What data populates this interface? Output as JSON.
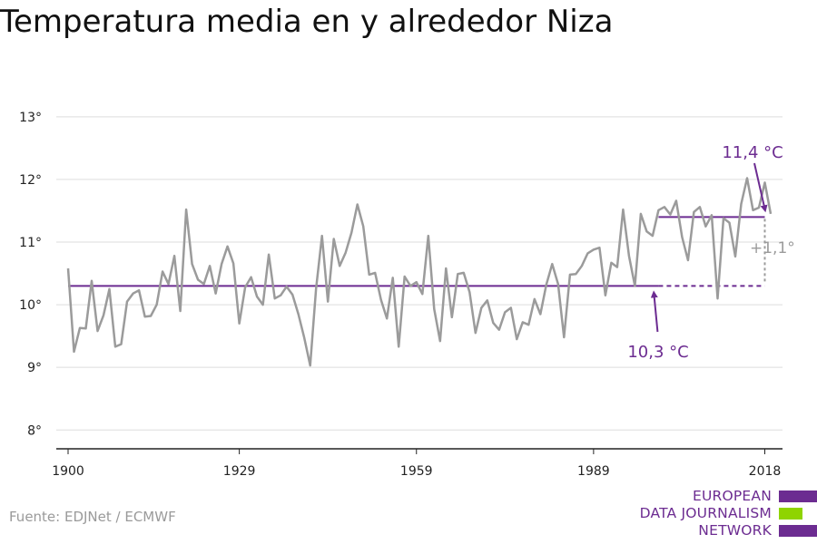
{
  "title": "Temperatura media en y alrededor Niza",
  "source": "Fuente: EDJNet / ECMWF",
  "logo": {
    "lines": [
      "EUROPEAN",
      "DATA JOURNALISM",
      "NETWORK"
    ],
    "colors": {
      "purple": "#6c2c91",
      "green": "#8fd400"
    }
  },
  "colors": {
    "series": "#9b9b9b",
    "baseline": "#6c2c91",
    "delta": "#9b9b9b",
    "grid": "#dddddd"
  },
  "chart_data": {
    "type": "line",
    "title": "Temperatura media en y alrededor Niza",
    "ylim": [
      7.7,
      13.2
    ],
    "xlim": [
      1898,
      2021
    ],
    "y_ticks": [
      8,
      9,
      10,
      11,
      12,
      13
    ],
    "y_tick_labels": [
      "8°",
      "9°",
      "10°",
      "11°",
      "12°",
      "13°"
    ],
    "x_ticks": [
      1900,
      1929,
      1959,
      1989,
      2018
    ],
    "x_tick_labels": [
      "1900",
      "1929",
      "1959",
      "1989",
      "2018"
    ],
    "grid": true,
    "series": [
      {
        "x": [
          1900,
          1901,
          1902,
          1903,
          1904,
          1905,
          1906,
          1907,
          1908,
          1909,
          1910,
          1911,
          1912,
          1913,
          1914,
          1915,
          1916,
          1917,
          1918,
          1919,
          1920,
          1921,
          1922,
          1923,
          1924,
          1925,
          1926,
          1927,
          1928,
          1929,
          1930,
          1931,
          1932,
          1933,
          1934,
          1935,
          1936,
          1937,
          1938,
          1939,
          1940,
          1941,
          1942,
          1943,
          1944,
          1945,
          1946,
          1947,
          1948,
          1949,
          1950,
          1951,
          1952,
          1953,
          1954,
          1955,
          1956,
          1957,
          1958,
          1959,
          1960,
          1961,
          1962,
          1963,
          1964,
          1965,
          1966,
          1967,
          1968,
          1969,
          1970,
          1971,
          1972,
          1973,
          1974,
          1975,
          1976,
          1977,
          1978,
          1979,
          1980,
          1981,
          1982,
          1983,
          1984,
          1985,
          1986,
          1987,
          1988,
          1989,
          1990,
          1991,
          1992,
          1993,
          1994,
          1995,
          1996,
          1997,
          1998,
          1999,
          2000,
          2001,
          2002,
          2003,
          2004,
          2005,
          2006,
          2007,
          2008,
          2009,
          2010,
          2011,
          2012,
          2013,
          2014,
          2015,
          2016,
          2017,
          2018,
          2019
        ],
        "values": [
          10.58,
          9.25,
          9.63,
          9.62,
          10.38,
          9.58,
          9.83,
          10.25,
          9.33,
          9.37,
          10.05,
          10.18,
          10.23,
          9.81,
          9.82,
          10.0,
          10.53,
          10.33,
          10.78,
          9.9,
          11.52,
          10.65,
          10.4,
          10.33,
          10.62,
          10.18,
          10.65,
          10.93,
          10.66,
          9.7,
          10.28,
          10.44,
          10.13,
          10.0,
          10.8,
          10.1,
          10.15,
          10.29,
          10.16,
          9.85,
          9.47,
          9.03,
          10.26,
          11.1,
          10.05,
          11.05,
          10.62,
          10.83,
          11.15,
          11.6,
          11.25,
          10.48,
          10.51,
          10.08,
          9.78,
          10.43,
          9.33,
          10.45,
          10.3,
          10.36,
          10.17,
          11.1,
          9.93,
          9.42,
          10.58,
          9.8,
          10.49,
          10.51,
          10.2,
          9.55,
          9.95,
          10.07,
          9.71,
          9.6,
          9.88,
          9.95,
          9.45,
          9.72,
          9.68,
          10.09,
          9.85,
          10.32,
          10.65,
          10.33,
          9.48,
          10.48,
          10.49,
          10.62,
          10.82,
          10.88,
          10.91,
          10.15,
          10.67,
          10.6,
          11.52,
          10.78,
          10.3,
          11.45,
          11.17,
          11.1,
          11.51,
          11.56,
          11.44,
          11.66,
          11.08,
          10.71,
          11.48,
          11.56,
          11.25,
          11.43,
          10.1,
          11.38,
          11.31,
          10.77,
          11.61,
          12.02,
          11.51,
          11.55,
          11.95,
          11.45
        ]
      }
    ],
    "annotations": {
      "baseline": {
        "value": 10.3,
        "label": "10,3 °C",
        "x_start": 1900,
        "x_solid_end": 2000,
        "x_end": 2018
      },
      "recent": {
        "value": 11.4,
        "label": "11,4 °C",
        "x_start": 2000,
        "x_end": 2018
      },
      "difference": {
        "label": "+1,1°"
      }
    }
  }
}
